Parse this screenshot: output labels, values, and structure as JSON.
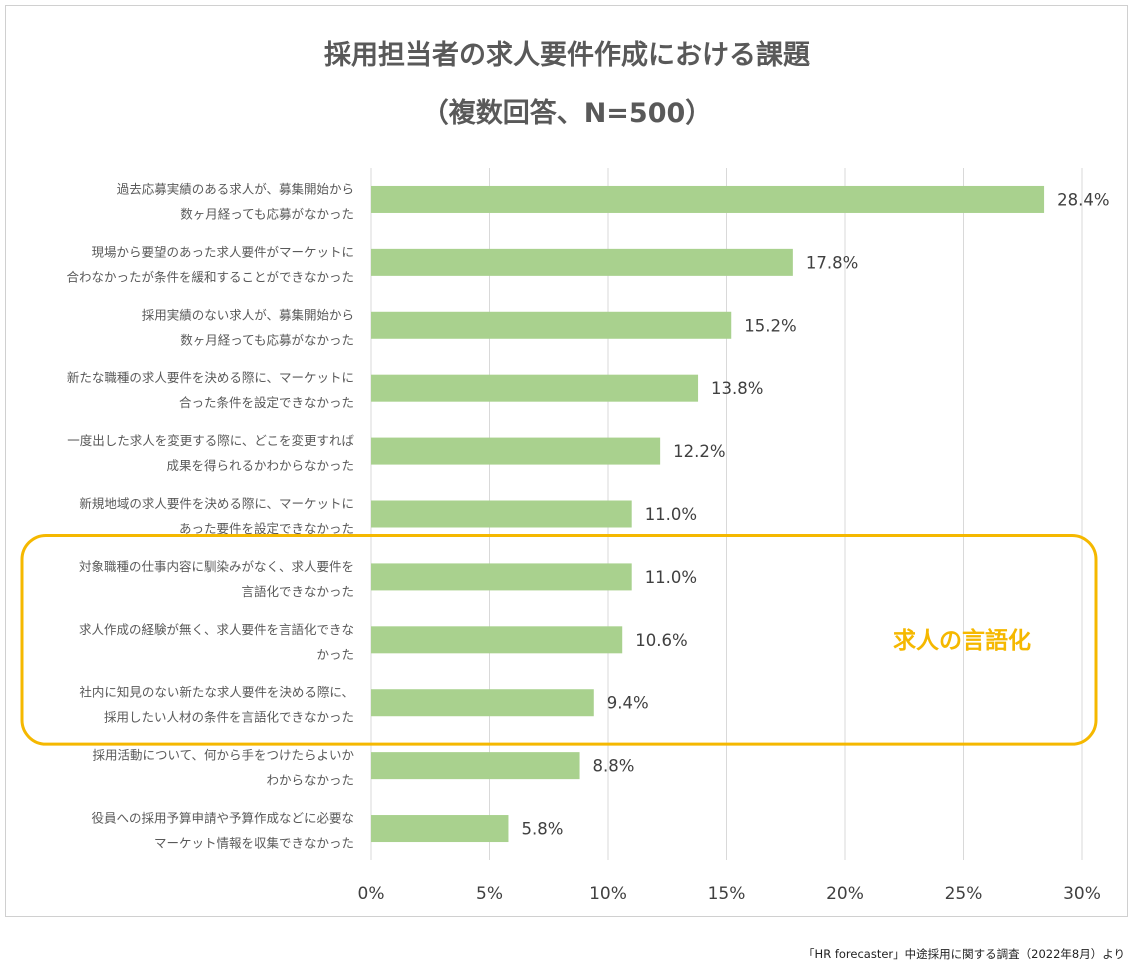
{
  "chart_data": {
    "type": "bar",
    "orientation": "horizontal",
    "title": [
      "採用担当者の求人要件作成における課題",
      "（複数回答、N=500）"
    ],
    "categories": [
      [
        "過去応募実績のある求人が、募集開始から",
        "数ヶ月経っても応募がなかった"
      ],
      [
        "現場から要望のあった求人要件がマーケットに",
        "合わなかったが条件を緩和することができなかった"
      ],
      [
        "採用実績のない求人が、募集開始から",
        "数ヶ月経っても応募がなかった"
      ],
      [
        "新たな職種の求人要件を決める際に、マーケットに",
        "合った条件を設定できなかった"
      ],
      [
        "一度出した求人を変更する際に、どこを変更すれば",
        "成果を得られるかわからなかった"
      ],
      [
        "新規地域の求人要件を決める際に、マーケットに",
        "あった要件を設定できなかった"
      ],
      [
        "対象職種の仕事内容に馴染みがなく、求人要件を",
        "言語化できなかった"
      ],
      [
        "求人作成の経験が無く、求人要件を言語化できな",
        "かった"
      ],
      [
        "社内に知見のない新たな求人要件を決める際に、",
        "採用したい人材の条件を言語化できなかった"
      ],
      [
        "採用活動について、何から手をつけたらよいか",
        "わからなかった"
      ],
      [
        "役員への採用予算申請や予算作成などに必要な",
        "マーケット情報を収集できなかった"
      ]
    ],
    "values": [
      28.4,
      17.8,
      15.2,
      13.8,
      12.2,
      11.0,
      11.0,
      10.6,
      9.4,
      8.8,
      5.8
    ],
    "value_labels": [
      "28.4%",
      "17.8%",
      "15.2%",
      "13.8%",
      "12.2%",
      "11.0%",
      "11.0%",
      "10.6%",
      "9.4%",
      "8.8%",
      "5.8%"
    ],
    "xlim": [
      0,
      30
    ],
    "xticks": [
      0,
      5,
      10,
      15,
      20,
      25,
      30
    ],
    "xtick_labels": [
      "0%",
      "5%",
      "10%",
      "15%",
      "20%",
      "25%",
      "30%"
    ],
    "grid": true,
    "bar_color": "#a9d18e",
    "highlight": {
      "label": "求人の言語化",
      "category_indices": [
        6,
        7,
        8
      ],
      "color": "#f5b800"
    }
  },
  "source_note": "「HR forecaster」中途採用に関する調査（2022年8月）より"
}
